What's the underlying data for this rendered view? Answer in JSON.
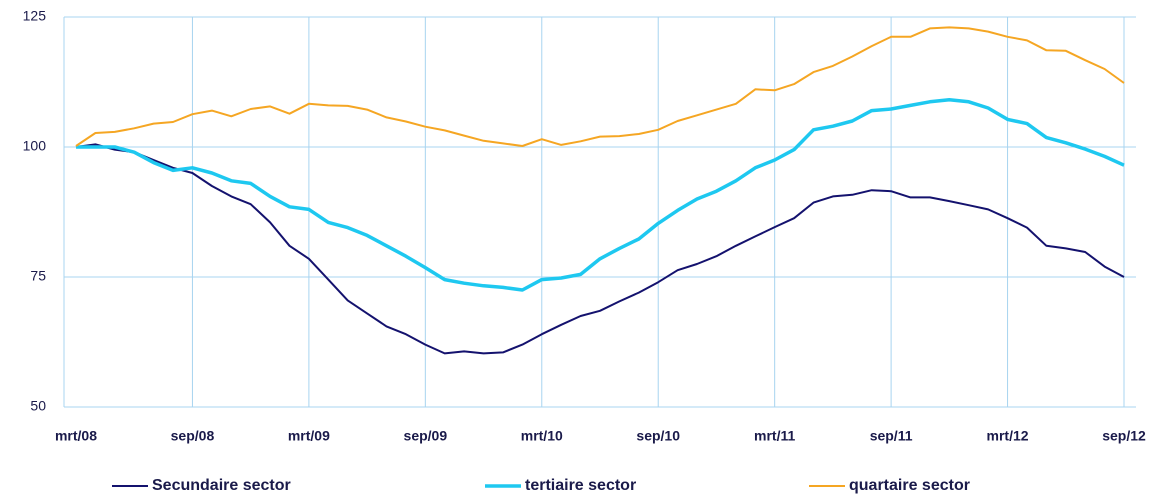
{
  "chart_data": {
    "type": "line",
    "categories": [
      "mrt/08",
      null,
      null,
      null,
      null,
      null,
      "sep/08",
      null,
      null,
      null,
      null,
      null,
      "mrt/09",
      null,
      null,
      null,
      null,
      null,
      "sep/09",
      null,
      null,
      null,
      null,
      null,
      "mrt/10",
      null,
      null,
      null,
      null,
      null,
      "sep/10",
      null,
      null,
      null,
      null,
      null,
      "mrt/11",
      null,
      null,
      null,
      null,
      null,
      "sep/11",
      null,
      null,
      null,
      null,
      null,
      "mrt/12",
      null,
      null,
      null,
      null,
      null,
      "sep/12"
    ],
    "series": [
      {
        "name": "Secundaire sector",
        "color": "#14126e",
        "values": [
          100,
          100.5,
          99.5,
          99,
          97.5,
          96,
          95,
          92.5,
          90.5,
          89,
          85.5,
          81,
          78.5,
          74.5,
          70.5,
          68,
          65.5,
          64,
          62,
          60.3,
          60.7,
          60.3,
          60.5,
          62,
          64,
          65.8,
          67.5,
          68.5,
          70.3,
          72,
          74,
          76.3,
          77.5,
          79,
          81,
          82.8,
          84.6,
          86.3,
          89.3,
          90.5,
          90.8,
          91.7,
          91.5,
          90.3,
          90.3,
          89.6,
          88.8,
          88,
          86.3,
          84.5,
          81,
          80.5,
          79.8,
          77,
          75
        ]
      },
      {
        "name": "tertiaire sector",
        "color": "#1ec8f0",
        "values": [
          100,
          100,
          100,
          99,
          97,
          95.5,
          96,
          95,
          93.5,
          93,
          90.5,
          88.5,
          88,
          85.5,
          84.5,
          83,
          81,
          79,
          76.8,
          74.5,
          73.8,
          73.3,
          73,
          72.5,
          74.5,
          74.8,
          75.5,
          78.5,
          80.5,
          82.3,
          85.3,
          87.8,
          90,
          91.5,
          93.5,
          96,
          97.5,
          99.5,
          103.3,
          104,
          105,
          107,
          107.3,
          108,
          108.7,
          109.1,
          108.7,
          107.5,
          105.3,
          104.5,
          101.8,
          100.8,
          99.6,
          98.2,
          96.5
        ]
      },
      {
        "name": "quartaire sector",
        "color": "#f5a623",
        "values": [
          100.2,
          102.7,
          102.9,
          103.6,
          104.5,
          104.8,
          106.3,
          107,
          105.9,
          107.3,
          107.8,
          106.4,
          108.3,
          108,
          107.9,
          107.2,
          105.7,
          104.9,
          103.9,
          103.2,
          102.2,
          101.2,
          100.7,
          100.2,
          101.5,
          100.4,
          101.1,
          102,
          102.1,
          102.5,
          103.3,
          105,
          106.1,
          107.2,
          108.3,
          111.1,
          110.9,
          112.1,
          114.4,
          115.6,
          117.4,
          119.4,
          121.2,
          121.2,
          122.8,
          123,
          122.8,
          122.2,
          121.2,
          120.5,
          118.6,
          118.5,
          116.7,
          115,
          112.3
        ]
      }
    ],
    "ylim": [
      50,
      125
    ],
    "yticks": [
      50,
      75,
      100,
      125
    ],
    "grid": true,
    "legend": "bottom"
  }
}
